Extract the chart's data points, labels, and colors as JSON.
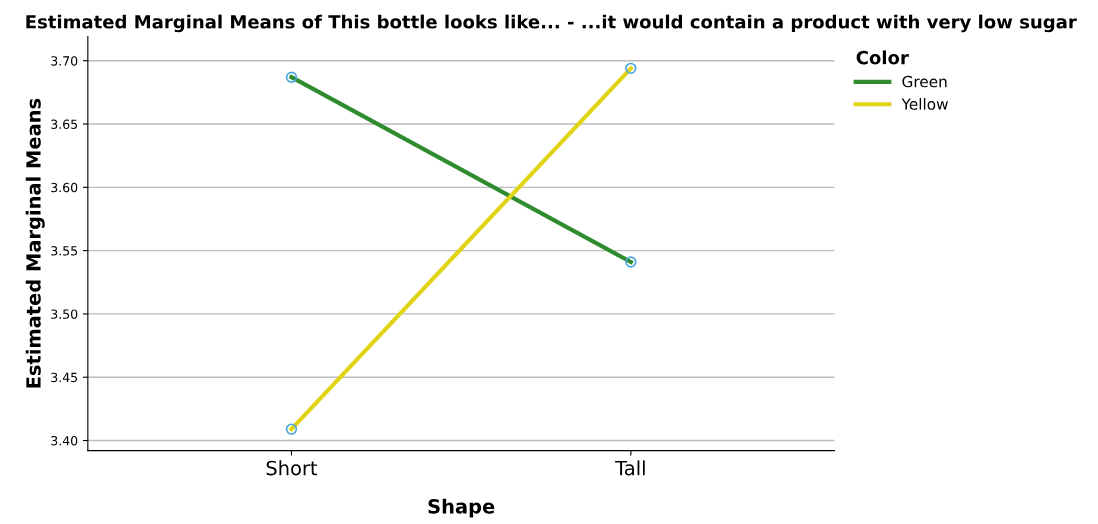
{
  "chart_data": {
    "type": "line",
    "title": "Estimated Marginal Means of This bottle looks like... - ...it would contain a product with very low sugar",
    "xlabel": "Shape",
    "ylabel": "Estimated Marginal Means",
    "legend_title": "Color",
    "categories": [
      "Short",
      "Tall"
    ],
    "series": [
      {
        "name": "Green",
        "color": "#2e8b2e",
        "values": [
          3.687,
          3.541
        ]
      },
      {
        "name": "Yellow",
        "color": "#e0d414",
        "values": [
          3.409,
          3.694
        ]
      }
    ],
    "ylim": [
      3.392,
      3.719
    ],
    "yticks": [
      {
        "value": 3.4,
        "label": "3.40"
      },
      3.45,
      {
        "value": 3.5,
        "label": "3.50"
      },
      3.55,
      {
        "value": 3.6,
        "label": "3.60"
      },
      3.65,
      {
        "value": 3.7,
        "label": "3.70"
      }
    ],
    "grid": "y",
    "legend": "top right",
    "marker": "circle"
  }
}
